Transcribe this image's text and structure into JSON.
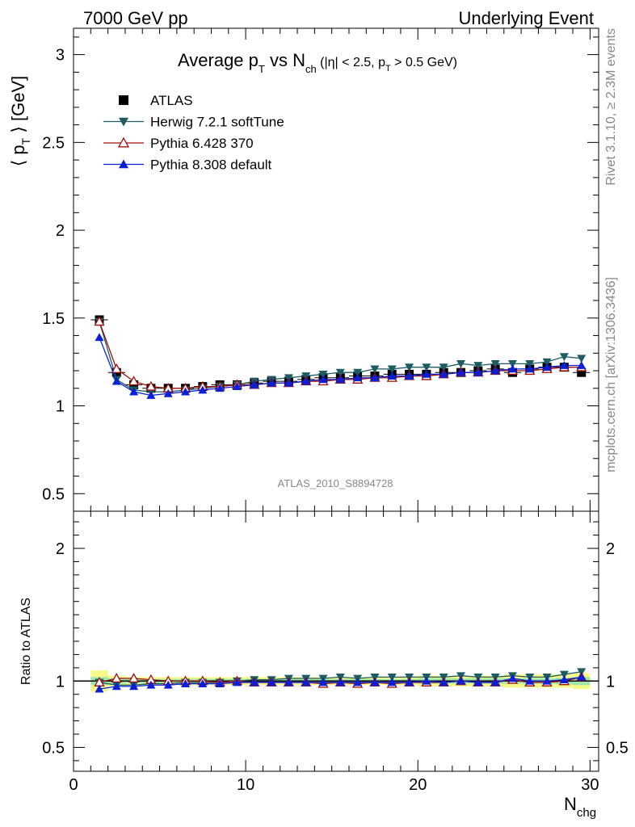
{
  "header": {
    "left": "7000 GeV pp",
    "right": "Underlying Event"
  },
  "title": {
    "main": "Average p",
    "sub1": "T",
    "mid": " vs N",
    "sub2": "ch",
    "cuts": " (|η| < 2.5, p",
    "cuts_sub": "T",
    "cuts_end": " > 0.5 GeV)"
  },
  "side_labels": {
    "rivet": "Rivet 3.1.10, ≥ 2.3M events",
    "mcplots": "mcplots.cern.ch [arXiv:1306.3436]"
  },
  "analysis_id": "ATLAS_2010_S8894728",
  "chart_data": [
    {
      "type": "scatter",
      "panel": "main",
      "ylabel": "⟨ p",
      "ylabel_sub": "T",
      "ylabel_end": " ⟩ [GeV]",
      "ylim": [
        0.4,
        3.15
      ],
      "yticks": [
        "0.5",
        "1",
        "1.5",
        "2",
        "2.5",
        "3"
      ],
      "xlim": [
        0,
        30.5
      ],
      "x": [
        1.5,
        2.5,
        3.5,
        4.5,
        5.5,
        6.5,
        7.5,
        8.5,
        9.5,
        10.5,
        11.5,
        12.5,
        13.5,
        14.5,
        15.5,
        16.5,
        17.5,
        18.5,
        19.5,
        20.5,
        21.5,
        22.5,
        23.5,
        24.5,
        25.5,
        26.5,
        27.5,
        28.5,
        29.5
      ],
      "series": [
        {
          "name": "ATLAS",
          "color": "#000000",
          "marker": "square",
          "values": [
            1.49,
            1.19,
            1.12,
            1.1,
            1.1,
            1.1,
            1.11,
            1.12,
            1.12,
            1.13,
            1.14,
            1.14,
            1.15,
            1.16,
            1.16,
            1.17,
            1.17,
            1.18,
            1.18,
            1.18,
            1.19,
            1.19,
            1.2,
            1.21,
            1.19,
            1.21,
            1.22,
            1.22,
            1.19
          ]
        },
        {
          "name": "Herwig 7.2.1 softTune",
          "color": "#1d5c63",
          "marker": "triangle-down",
          "values": [
            1.48,
            1.15,
            1.09,
            1.08,
            1.08,
            1.09,
            1.1,
            1.11,
            1.12,
            1.14,
            1.15,
            1.16,
            1.17,
            1.18,
            1.19,
            1.19,
            1.21,
            1.21,
            1.22,
            1.22,
            1.22,
            1.24,
            1.23,
            1.24,
            1.24,
            1.24,
            1.25,
            1.28,
            1.27
          ]
        },
        {
          "name": "Pythia 6.428 370",
          "color": "#a00d0d",
          "marker": "triangle-up-open",
          "values": [
            1.48,
            1.21,
            1.14,
            1.11,
            1.1,
            1.1,
            1.11,
            1.11,
            1.12,
            1.12,
            1.13,
            1.13,
            1.14,
            1.14,
            1.15,
            1.15,
            1.16,
            1.16,
            1.17,
            1.17,
            1.18,
            1.19,
            1.19,
            1.2,
            1.2,
            1.2,
            1.21,
            1.22,
            1.22
          ]
        },
        {
          "name": "Pythia 8.308 default",
          "color": "#0a1fd6",
          "marker": "triangle-up",
          "values": [
            1.39,
            1.14,
            1.08,
            1.06,
            1.07,
            1.08,
            1.09,
            1.1,
            1.11,
            1.12,
            1.13,
            1.13,
            1.14,
            1.15,
            1.15,
            1.16,
            1.16,
            1.17,
            1.17,
            1.18,
            1.18,
            1.19,
            1.19,
            1.2,
            1.21,
            1.21,
            1.22,
            1.23,
            1.23
          ]
        }
      ]
    },
    {
      "type": "scatter",
      "panel": "ratio",
      "ylabel": "Ratio to ATLAS",
      "xlabel": "N",
      "xlabel_sub": "chg",
      "ylim": [
        0.32,
        2.28
      ],
      "yticks": [
        "0.5",
        "1",
        "2"
      ],
      "xlim": [
        0,
        30.5
      ],
      "xticks": [
        "0",
        "10",
        "20",
        "30"
      ],
      "x": [
        1.5,
        2.5,
        3.5,
        4.5,
        5.5,
        6.5,
        7.5,
        8.5,
        9.5,
        10.5,
        11.5,
        12.5,
        13.5,
        14.5,
        15.5,
        16.5,
        17.5,
        18.5,
        19.5,
        20.5,
        21.5,
        22.5,
        23.5,
        24.5,
        25.5,
        26.5,
        27.5,
        28.5,
        29.5
      ],
      "band_outer": [
        0.08,
        0.04,
        0.03,
        0.03,
        0.03,
        0.03,
        0.03,
        0.03,
        0.03,
        0.03,
        0.03,
        0.03,
        0.03,
        0.03,
        0.03,
        0.03,
        0.03,
        0.03,
        0.03,
        0.04,
        0.04,
        0.04,
        0.04,
        0.04,
        0.05,
        0.05,
        0.05,
        0.05,
        0.06
      ],
      "band_inner": [
        0.03,
        0.02,
        0.015,
        0.015,
        0.015,
        0.015,
        0.015,
        0.015,
        0.015,
        0.015,
        0.015,
        0.015,
        0.015,
        0.015,
        0.015,
        0.015,
        0.015,
        0.015,
        0.015,
        0.02,
        0.02,
        0.02,
        0.02,
        0.02,
        0.02,
        0.02,
        0.02,
        0.025,
        0.03
      ],
      "series": [
        {
          "name": "Herwig 7.2.1 softTune",
          "color": "#1d5c63",
          "marker": "triangle-down",
          "values": [
            0.99,
            0.97,
            0.97,
            0.98,
            0.98,
            0.99,
            0.99,
            0.99,
            1.0,
            1.01,
            1.01,
            1.02,
            1.02,
            1.02,
            1.03,
            1.02,
            1.03,
            1.03,
            1.03,
            1.03,
            1.03,
            1.04,
            1.03,
            1.03,
            1.04,
            1.03,
            1.03,
            1.05,
            1.07
          ]
        },
        {
          "name": "Pythia 6.428 370",
          "color": "#a00d0d",
          "marker": "triangle-up-open",
          "values": [
            0.99,
            1.02,
            1.02,
            1.01,
            1.0,
            1.0,
            1.0,
            0.99,
            1.0,
            0.99,
            0.99,
            0.99,
            0.99,
            0.98,
            0.99,
            0.98,
            0.99,
            0.98,
            0.99,
            0.99,
            0.99,
            1.0,
            0.99,
            0.99,
            1.01,
            0.99,
            0.99,
            1.0,
            1.03
          ]
        },
        {
          "name": "Pythia 8.308 default",
          "color": "#0a1fd6",
          "marker": "triangle-up",
          "values": [
            0.94,
            0.96,
            0.96,
            0.97,
            0.97,
            0.98,
            0.98,
            0.98,
            0.99,
            0.99,
            0.99,
            0.99,
            0.99,
            0.99,
            0.99,
            0.99,
            0.99,
            0.99,
            0.99,
            1.0,
            0.99,
            1.0,
            0.99,
            0.99,
            1.02,
            1.0,
            1.0,
            1.01,
            1.03
          ]
        }
      ]
    }
  ]
}
